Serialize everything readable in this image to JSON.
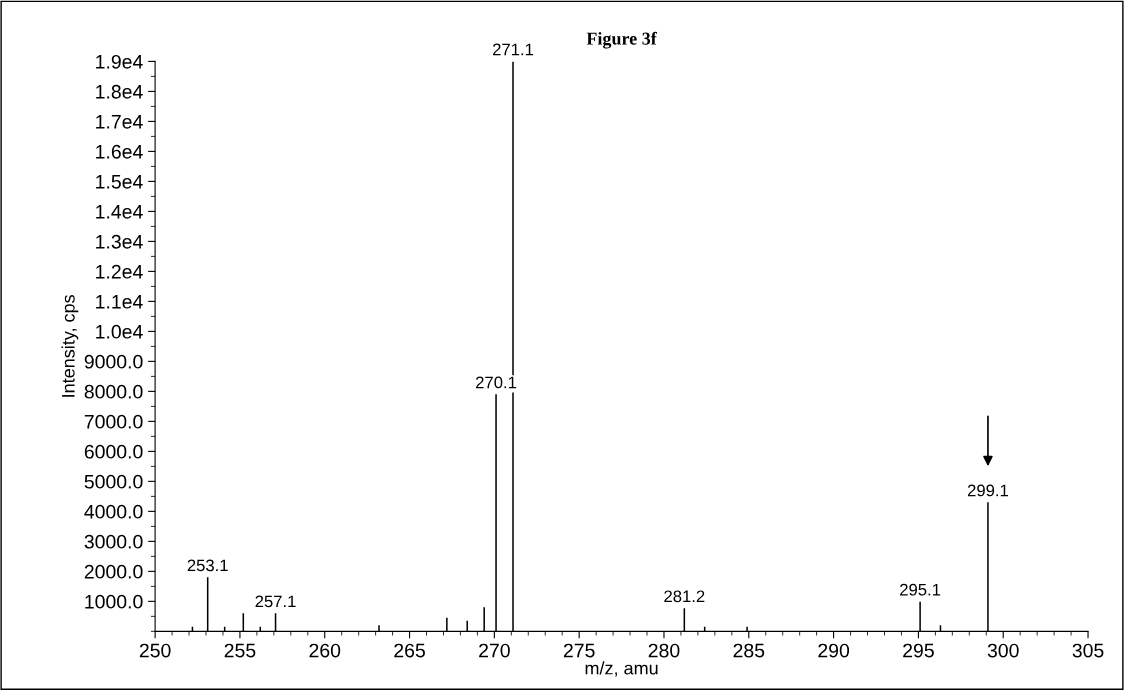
{
  "chart_data": {
    "type": "bar",
    "title": "Figure 3f",
    "xlabel": "m/z, amu",
    "ylabel": "Intensity, cps",
    "x": [
      252.2,
      253.1,
      254.1,
      255.2,
      256.2,
      257.1,
      263.2,
      267.2,
      268.4,
      269.4,
      270.1,
      271.1,
      281.2,
      282.4,
      284.9,
      295.1,
      296.3,
      299.1
    ],
    "values": [
      150,
      1800,
      150,
      600,
      150,
      600,
      200,
      450,
      350,
      800,
      7900,
      19000,
      770,
      150,
      150,
      990,
      200,
      4300
    ],
    "color": "#000000",
    "annotations": [
      {
        "text": "253.1",
        "x": 253.1,
        "y": 1800
      },
      {
        "text": "257.1",
        "x": 257.1,
        "y": 600
      },
      {
        "text": "270.1",
        "x": 270.1,
        "y": 7900
      },
      {
        "text": "271.1",
        "x": 271.1,
        "y": 19000
      },
      {
        "text": "281.2",
        "x": 281.2,
        "y": 770
      },
      {
        "text": "295.1",
        "x": 295.1,
        "y": 990
      },
      {
        "text": "299.1",
        "x": 299.1,
        "y": 4300
      }
    ],
    "xlim": [
      250,
      305
    ],
    "xticks": [
      250,
      255,
      260,
      265,
      270,
      275,
      280,
      285,
      290,
      295,
      300,
      305
    ],
    "ylim": [
      0,
      19000
    ],
    "yticks": [
      {
        "value": 1000,
        "label": "1000.0"
      },
      {
        "value": 2000,
        "label": "2000.0"
      },
      {
        "value": 3000,
        "label": "3000.0"
      },
      {
        "value": 4000,
        "label": "4000.0"
      },
      {
        "value": 5000,
        "label": "5000.0"
      },
      {
        "value": 6000,
        "label": "6000.0"
      },
      {
        "value": 7000,
        "label": "7000.0"
      },
      {
        "value": 8000,
        "label": "8000.0"
      },
      {
        "value": 9000,
        "label": "9000.0"
      },
      {
        "value": 10000,
        "label": "1.0e4"
      },
      {
        "value": 11000,
        "label": "1.1e4"
      },
      {
        "value": 12000,
        "label": "1.2e4"
      },
      {
        "value": 13000,
        "label": "1.3e4"
      },
      {
        "value": 14000,
        "label": "1.4e4"
      },
      {
        "value": 15000,
        "label": "1.5e4"
      },
      {
        "value": 16000,
        "label": "1.6e4"
      },
      {
        "value": 17000,
        "label": "1.7e4"
      },
      {
        "value": 18000,
        "label": "1.8e4"
      },
      {
        "value": 19000,
        "label": "1.9e4"
      }
    ],
    "grid": false,
    "legend": false
  }
}
